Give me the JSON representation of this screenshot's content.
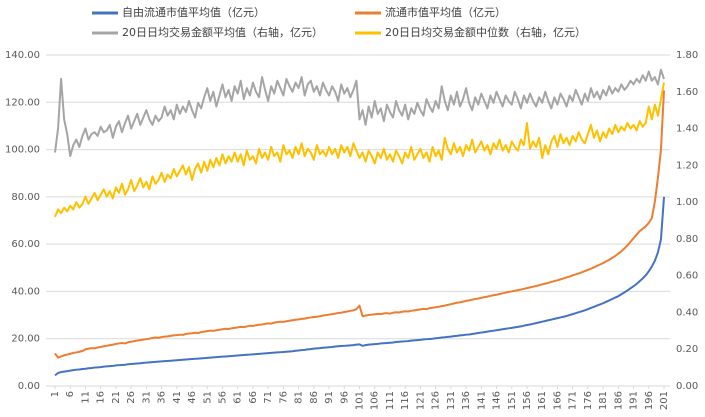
{
  "chart_data": {
    "type": "line",
    "x": [
      1,
      2,
      3,
      4,
      5,
      6,
      7,
      8,
      9,
      10,
      11,
      12,
      13,
      14,
      15,
      16,
      17,
      18,
      19,
      20,
      21,
      22,
      23,
      24,
      25,
      26,
      27,
      28,
      29,
      30,
      31,
      32,
      33,
      34,
      35,
      36,
      37,
      38,
      39,
      40,
      41,
      42,
      43,
      44,
      45,
      46,
      47,
      48,
      49,
      50,
      51,
      52,
      53,
      54,
      55,
      56,
      57,
      58,
      59,
      60,
      61,
      62,
      63,
      64,
      65,
      66,
      67,
      68,
      69,
      70,
      71,
      72,
      73,
      74,
      75,
      76,
      77,
      78,
      79,
      80,
      81,
      82,
      83,
      84,
      85,
      86,
      87,
      88,
      89,
      90,
      91,
      92,
      93,
      94,
      95,
      96,
      97,
      98,
      99,
      100,
      101,
      102,
      103,
      104,
      105,
      106,
      107,
      108,
      109,
      110,
      111,
      112,
      113,
      114,
      115,
      116,
      117,
      118,
      119,
      120,
      121,
      122,
      123,
      124,
      125,
      126,
      127,
      128,
      129,
      130,
      131,
      132,
      133,
      134,
      135,
      136,
      137,
      138,
      139,
      140,
      141,
      142,
      143,
      144,
      145,
      146,
      147,
      148,
      149,
      150,
      151,
      152,
      153,
      154,
      155,
      156,
      157,
      158,
      159,
      160,
      161,
      162,
      163,
      164,
      165,
      166,
      167,
      168,
      169,
      170,
      171,
      172,
      173,
      174,
      175,
      176,
      177,
      178,
      179,
      180,
      181,
      182,
      183,
      184,
      185,
      186,
      187,
      188,
      189,
      190,
      191,
      192,
      193,
      194,
      195,
      196,
      197,
      198,
      199,
      200,
      201
    ],
    "xlim": [
      1,
      201
    ],
    "xticks": [
      1,
      6,
      11,
      16,
      21,
      26,
      31,
      36,
      41,
      46,
      51,
      56,
      61,
      66,
      71,
      76,
      81,
      86,
      91,
      96,
      101,
      106,
      111,
      116,
      121,
      126,
      131,
      136,
      141,
      146,
      151,
      156,
      161,
      166,
      171,
      176,
      181,
      186,
      191,
      196,
      201
    ],
    "ylim": [
      0,
      140
    ],
    "yticks": [
      {
        "value": 0,
        "label": "0.00"
      },
      {
        "value": 20,
        "label": "20.00"
      },
      {
        "value": 40,
        "label": "40.00"
      },
      {
        "value": 60,
        "label": "60.00"
      },
      {
        "value": 80,
        "label": "80.00"
      },
      {
        "value": 100,
        "label": "100.00"
      },
      {
        "value": 120,
        "label": "120.00"
      },
      {
        "value": 140,
        "label": "140.00"
      }
    ],
    "y2lim": [
      0,
      1.8
    ],
    "y2ticks": [
      {
        "value": 0,
        "label": "0.00"
      },
      {
        "value": 0.2,
        "label": "0.20"
      },
      {
        "value": 0.4,
        "label": "0.40"
      },
      {
        "value": 0.6,
        "label": "0.60"
      },
      {
        "value": 0.8,
        "label": "0.80"
      },
      {
        "value": 1,
        "label": "1.00"
      },
      {
        "value": 1.2,
        "label": "1.20"
      },
      {
        "value": 1.4,
        "label": "1.40"
      },
      {
        "value": 1.6,
        "label": "1.60"
      },
      {
        "value": 1.8,
        "label": "1.80"
      }
    ],
    "grid": true,
    "series": [
      {
        "name": "自由流通市值平均值（亿元）",
        "color": "#4472c4",
        "values": [
          4.5,
          5.5,
          5.9,
          6.1,
          6.3,
          6.5,
          6.7,
          6.9,
          7.0,
          7.2,
          7.3,
          7.5,
          7.6,
          7.8,
          7.9,
          8.0,
          8.2,
          8.3,
          8.4,
          8.5,
          8.7,
          8.8,
          8.9,
          9.0,
          9.2,
          9.3,
          9.4,
          9.5,
          9.6,
          9.8,
          9.9,
          10.0,
          10.1,
          10.2,
          10.3,
          10.4,
          10.5,
          10.6,
          10.7,
          10.8,
          10.9,
          11.0,
          11.1,
          11.2,
          11.3,
          11.4,
          11.5,
          11.6,
          11.7,
          11.8,
          11.9,
          12.0,
          12.1,
          12.2,
          12.3,
          12.4,
          12.5,
          12.6,
          12.7,
          12.8,
          12.9,
          13.0,
          13.1,
          13.2,
          13.3,
          13.4,
          13.5,
          13.6,
          13.7,
          13.8,
          13.9,
          14.0,
          14.1,
          14.2,
          14.3,
          14.4,
          14.5,
          14.6,
          14.7,
          14.9,
          15.0,
          15.2,
          15.3,
          15.5,
          15.6,
          15.8,
          15.9,
          16.0,
          16.2,
          16.3,
          16.4,
          16.5,
          16.7,
          16.8,
          16.9,
          17.0,
          17.1,
          17.2,
          17.3,
          17.5,
          17.6,
          17.0,
          17.3,
          17.5,
          17.6,
          17.7,
          17.8,
          18.0,
          18.1,
          18.2,
          18.3,
          18.4,
          18.6,
          18.7,
          18.8,
          18.9,
          19.0,
          19.2,
          19.3,
          19.4,
          19.5,
          19.7,
          19.8,
          19.9,
          20.0,
          20.2,
          20.3,
          20.5,
          20.6,
          20.8,
          20.9,
          21.1,
          21.2,
          21.4,
          21.5,
          21.7,
          21.8,
          22.0,
          22.2,
          22.4,
          22.6,
          22.8,
          23.0,
          23.2,
          23.4,
          23.6,
          23.8,
          24.0,
          24.2,
          24.4,
          24.6,
          24.8,
          25.0,
          25.2,
          25.5,
          25.8,
          26.0,
          26.3,
          26.6,
          26.9,
          27.2,
          27.5,
          27.8,
          28.1,
          28.4,
          28.7,
          29.0,
          29.3,
          29.6,
          30.0,
          30.4,
          30.8,
          31.2,
          31.6,
          32.0,
          32.5,
          33.0,
          33.5,
          34.0,
          34.5,
          35.0,
          35.6,
          36.2,
          36.8,
          37.4,
          38.0,
          38.8,
          39.6,
          40.4,
          41.3,
          42.2,
          43.2,
          44.3,
          45.5,
          46.8,
          48.5,
          50.5,
          53.0,
          56.5,
          62.0,
          80.0
        ]
      },
      {
        "name": "流通市值平均值（亿元）",
        "color": "#ed7d31",
        "values": [
          13.8,
          12.0,
          12.5,
          13.0,
          13.3,
          13.6,
          14.0,
          14.2,
          14.5,
          14.8,
          15.5,
          15.8,
          16.0,
          15.9,
          16.3,
          16.5,
          16.8,
          17.0,
          17.3,
          17.5,
          17.8,
          18.0,
          18.2,
          18.0,
          18.5,
          18.7,
          19.0,
          19.2,
          19.4,
          19.6,
          19.8,
          20.0,
          20.3,
          20.5,
          20.4,
          20.7,
          20.9,
          21.0,
          21.2,
          21.4,
          21.5,
          21.7,
          21.6,
          22.0,
          22.2,
          22.3,
          22.5,
          22.4,
          22.8,
          23.0,
          23.2,
          23.4,
          23.3,
          23.6,
          23.8,
          24.0,
          24.2,
          24.1,
          24.4,
          24.6,
          24.8,
          25.0,
          24.9,
          25.2,
          25.5,
          25.4,
          25.7,
          25.9,
          26.0,
          26.3,
          26.5,
          26.4,
          26.8,
          27.0,
          27.2,
          27.1,
          27.4,
          27.6,
          27.8,
          28.0,
          28.2,
          28.4,
          28.5,
          28.8,
          29.0,
          29.2,
          29.3,
          29.5,
          29.8,
          30.0,
          30.2,
          30.4,
          30.6,
          30.9,
          31.0,
          31.3,
          31.5,
          31.8,
          32.0,
          32.5,
          34.0,
          29.5,
          29.8,
          30.0,
          30.2,
          30.3,
          30.5,
          30.4,
          30.7,
          30.8,
          30.6,
          31.0,
          31.2,
          31.1,
          31.4,
          31.6,
          31.5,
          31.8,
          32.0,
          32.2,
          32.4,
          32.6,
          32.5,
          32.9,
          33.1,
          33.3,
          33.5,
          33.8,
          34.0,
          34.3,
          34.6,
          34.9,
          35.2,
          35.4,
          35.7,
          36.0,
          36.2,
          36.5,
          36.8,
          37.0,
          37.3,
          37.6,
          37.8,
          38.1,
          38.4,
          38.6,
          38.9,
          39.2,
          39.5,
          39.8,
          40.0,
          40.3,
          40.5,
          40.8,
          41.1,
          41.4,
          41.7,
          42.0,
          42.3,
          42.6,
          43.0,
          43.3,
          43.6,
          44.0,
          44.4,
          44.7,
          45.1,
          45.5,
          45.9,
          46.3,
          46.8,
          47.2,
          47.6,
          48.1,
          48.6,
          49.1,
          49.6,
          50.2,
          50.8,
          51.4,
          52.0,
          52.7,
          53.4,
          54.2,
          55.0,
          56.0,
          57.0,
          58.2,
          59.5,
          61.0,
          62.5,
          64.0,
          65.5,
          66.5,
          67.5,
          69.0,
          71.0,
          78.0,
          88.0,
          100.0,
          125.0
        ]
      },
      {
        "name": "20日日均交易金额平均值（右轴，亿元）",
        "color": "#a5a5a5",
        "axis": "y2",
        "values": [
          1.27,
          1.4,
          1.67,
          1.45,
          1.37,
          1.25,
          1.31,
          1.34,
          1.3,
          1.36,
          1.4,
          1.34,
          1.37,
          1.38,
          1.36,
          1.41,
          1.38,
          1.39,
          1.42,
          1.35,
          1.41,
          1.44,
          1.38,
          1.43,
          1.47,
          1.4,
          1.44,
          1.48,
          1.42,
          1.46,
          1.5,
          1.45,
          1.42,
          1.47,
          1.44,
          1.46,
          1.52,
          1.47,
          1.5,
          1.45,
          1.53,
          1.48,
          1.52,
          1.49,
          1.55,
          1.5,
          1.46,
          1.54,
          1.51,
          1.57,
          1.62,
          1.55,
          1.6,
          1.52,
          1.58,
          1.64,
          1.57,
          1.61,
          1.55,
          1.63,
          1.59,
          1.66,
          1.56,
          1.62,
          1.58,
          1.65,
          1.6,
          1.57,
          1.68,
          1.61,
          1.55,
          1.63,
          1.59,
          1.66,
          1.62,
          1.58,
          1.67,
          1.63,
          1.6,
          1.65,
          1.62,
          1.68,
          1.58,
          1.64,
          1.66,
          1.6,
          1.63,
          1.58,
          1.65,
          1.61,
          1.58,
          1.63,
          1.6,
          1.55,
          1.64,
          1.59,
          1.62,
          1.57,
          1.61,
          1.66,
          1.45,
          1.5,
          1.42,
          1.52,
          1.46,
          1.55,
          1.48,
          1.51,
          1.44,
          1.53,
          1.49,
          1.46,
          1.55,
          1.5,
          1.47,
          1.53,
          1.45,
          1.51,
          1.48,
          1.54,
          1.5,
          1.47,
          1.56,
          1.52,
          1.49,
          1.55,
          1.51,
          1.63,
          1.55,
          1.5,
          1.58,
          1.53,
          1.6,
          1.52,
          1.56,
          1.62,
          1.54,
          1.5,
          1.57,
          1.53,
          1.59,
          1.55,
          1.51,
          1.58,
          1.54,
          1.6,
          1.56,
          1.52,
          1.58,
          1.55,
          1.53,
          1.6,
          1.56,
          1.51,
          1.58,
          1.54,
          1.59,
          1.55,
          1.52,
          1.57,
          1.54,
          1.6,
          1.55,
          1.51,
          1.57,
          1.53,
          1.59,
          1.56,
          1.52,
          1.58,
          1.55,
          1.61,
          1.57,
          1.53,
          1.59,
          1.55,
          1.62,
          1.57,
          1.6,
          1.56,
          1.61,
          1.58,
          1.63,
          1.59,
          1.62,
          1.6,
          1.64,
          1.61,
          1.63,
          1.66,
          1.64,
          1.67,
          1.65,
          1.69,
          1.66,
          1.71,
          1.66,
          1.68,
          1.64,
          1.72,
          1.67
        ]
      },
      {
        "name": "20日日均交易金额中位数（右轴，亿元）",
        "color": "#ffc000",
        "axis": "y2",
        "values": [
          0.92,
          0.96,
          0.94,
          0.97,
          0.95,
          0.98,
          0.96,
          1.0,
          0.97,
          0.99,
          1.03,
          0.99,
          1.02,
          1.05,
          1.01,
          1.04,
          1.07,
          1.03,
          1.06,
          1.02,
          1.08,
          1.05,
          1.1,
          1.04,
          1.07,
          1.12,
          1.06,
          1.09,
          1.13,
          1.08,
          1.11,
          1.07,
          1.14,
          1.1,
          1.12,
          1.16,
          1.11,
          1.15,
          1.13,
          1.18,
          1.14,
          1.17,
          1.2,
          1.15,
          1.19,
          1.12,
          1.18,
          1.21,
          1.16,
          1.22,
          1.17,
          1.23,
          1.19,
          1.24,
          1.2,
          1.26,
          1.21,
          1.25,
          1.22,
          1.27,
          1.22,
          1.26,
          1.2,
          1.28,
          1.23,
          1.25,
          1.21,
          1.29,
          1.24,
          1.27,
          1.23,
          1.3,
          1.25,
          1.27,
          1.22,
          1.31,
          1.26,
          1.28,
          1.24,
          1.3,
          1.26,
          1.32,
          1.25,
          1.29,
          1.27,
          1.23,
          1.31,
          1.26,
          1.28,
          1.25,
          1.3,
          1.26,
          1.29,
          1.24,
          1.31,
          1.27,
          1.3,
          1.25,
          1.32,
          1.28,
          1.24,
          1.27,
          1.22,
          1.28,
          1.25,
          1.21,
          1.27,
          1.24,
          1.29,
          1.23,
          1.26,
          1.22,
          1.28,
          1.25,
          1.21,
          1.27,
          1.24,
          1.3,
          1.23,
          1.26,
          1.29,
          1.24,
          1.27,
          1.22,
          1.3,
          1.25,
          1.28,
          1.23,
          1.35,
          1.29,
          1.26,
          1.32,
          1.27,
          1.3,
          1.25,
          1.31,
          1.28,
          1.34,
          1.27,
          1.3,
          1.33,
          1.28,
          1.31,
          1.26,
          1.32,
          1.29,
          1.34,
          1.28,
          1.31,
          1.27,
          1.33,
          1.3,
          1.28,
          1.34,
          1.31,
          1.43,
          1.29,
          1.33,
          1.3,
          1.35,
          1.24,
          1.31,
          1.26,
          1.33,
          1.36,
          1.3,
          1.37,
          1.32,
          1.35,
          1.31,
          1.36,
          1.33,
          1.38,
          1.34,
          1.32,
          1.37,
          1.42,
          1.35,
          1.39,
          1.33,
          1.38,
          1.35,
          1.4,
          1.37,
          1.42,
          1.38,
          1.41,
          1.39,
          1.43,
          1.4,
          1.42,
          1.39,
          1.44,
          1.41,
          1.43,
          1.52,
          1.45,
          1.53,
          1.47,
          1.56,
          1.65
        ]
      }
    ]
  }
}
